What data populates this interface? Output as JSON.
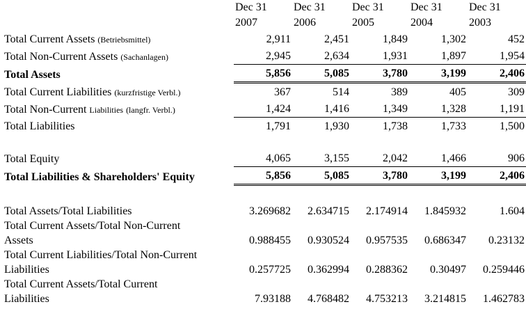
{
  "years": [
    {
      "month_day": "Dec 31",
      "year": "2007"
    },
    {
      "month_day": "Dec 31",
      "year": "2006"
    },
    {
      "month_day": "Dec 31",
      "year": "2005"
    },
    {
      "month_day": "Dec 31",
      "year": "2004"
    },
    {
      "month_day": "Dec 31",
      "year": "2003"
    }
  ],
  "rows": {
    "current_assets": {
      "label": "Total Current Assets",
      "sub": "(Betriebsmittel)",
      "values": [
        "2,911",
        "2,451",
        "1,849",
        "1,302",
        "452"
      ]
    },
    "noncurrent_assets": {
      "label": "Total Non-Current Assets",
      "sub": "(Sachanlagen)",
      "values": [
        "2,945",
        "2,634",
        "1,931",
        "1,897",
        "1,954"
      ]
    },
    "total_assets": {
      "label": "Total Assets",
      "values": [
        "5,856",
        "5,085",
        "3,780",
        "3,199",
        "2,406"
      ]
    },
    "current_liabilities": {
      "label": "Total Current Liabilities",
      "sub": "(kurzfristige Verbl.)",
      "values": [
        "367",
        "514",
        "389",
        "405",
        "309"
      ]
    },
    "noncurrent_liabilities": {
      "label": "Total Non-Current",
      "label2": "Liabilities",
      "sub": "(langfr. Verbl.)",
      "values": [
        "1,424",
        "1,416",
        "1,349",
        "1,328",
        "1,191"
      ]
    },
    "total_liabilities": {
      "label": "Total Liabilities",
      "values": [
        "1,791",
        "1,930",
        "1,738",
        "1,733",
        "1,500"
      ]
    },
    "total_equity": {
      "label": "Total Equity",
      "values": [
        "4,065",
        "3,155",
        "2,042",
        "1,466",
        "906"
      ]
    },
    "total_liab_equity": {
      "label": "Total Liabilities & Shareholders' Equity",
      "values": [
        "5,856",
        "5,085",
        "3,780",
        "3,199",
        "2,406"
      ]
    }
  },
  "ratios": {
    "assets_liabilities": {
      "label": "Total Assets/Total Liabilities",
      "values": [
        "3.269682",
        "2.634715",
        "2.174914",
        "1.845932",
        "1.604"
      ]
    },
    "ca_nca": {
      "label1": "Total Current Assets/Total Non-Current",
      "label2": "Assets",
      "values": [
        "0.988455",
        "0.930524",
        "0.957535",
        "0.686347",
        "0.23132"
      ]
    },
    "cl_ncl": {
      "label1": "Total Current Liabilities/Total Non-Current",
      "label2": "Liabilities",
      "values": [
        "0.257725",
        "0.362994",
        "0.288362",
        "0.30497",
        "0.259446"
      ]
    },
    "ca_cl": {
      "label1": "Total Current Assets/Total Current",
      "label2": "Liabilities",
      "values": [
        "7.93188",
        "4.768482",
        "4.753213",
        "3.214815",
        "1.462783"
      ]
    }
  }
}
